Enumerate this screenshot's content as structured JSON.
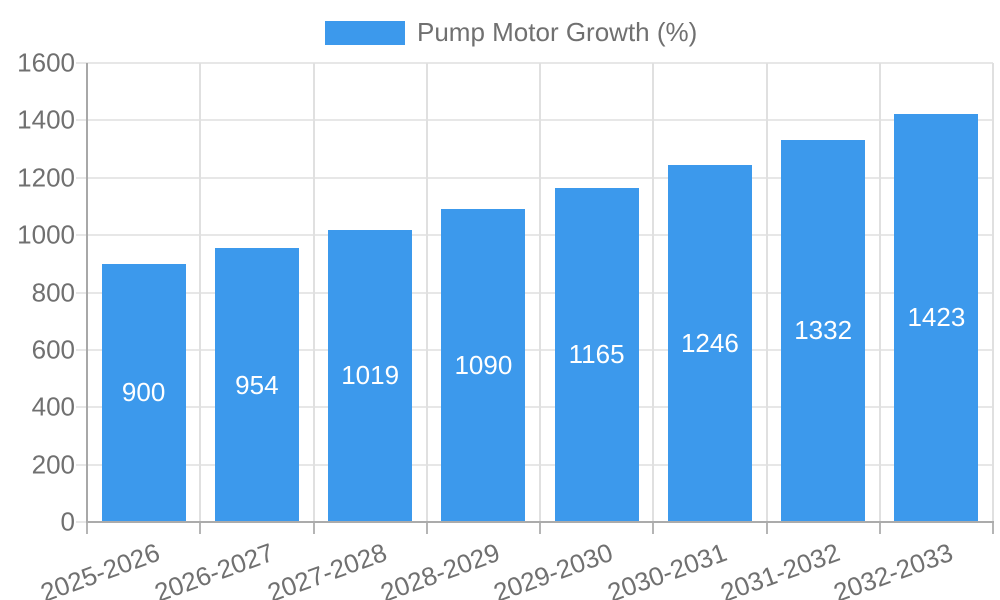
{
  "chart_data": {
    "type": "bar",
    "legend": "Pump Motor Growth (%)",
    "categories": [
      "2025-2026",
      "2026-2027",
      "2027-2028",
      "2028-2029",
      "2029-2030",
      "2030-2031",
      "2031-2032",
      "2032-2033"
    ],
    "values": [
      900,
      954,
      1019,
      1090,
      1165,
      1246,
      1332,
      1423
    ],
    "yticks": [
      0,
      200,
      400,
      600,
      800,
      1000,
      1200,
      1400,
      1600
    ],
    "ylim": [
      0,
      1600
    ],
    "grid": true,
    "legend_position": "top-center",
    "colors": {
      "bar": "#3c99ec",
      "bar_value_text": "#ffffff",
      "axis_text": "#707070",
      "axis_line": "#a8a8a8",
      "gridline_h": "#e7e7e7",
      "gridline_v": "#e0e0e0"
    }
  }
}
